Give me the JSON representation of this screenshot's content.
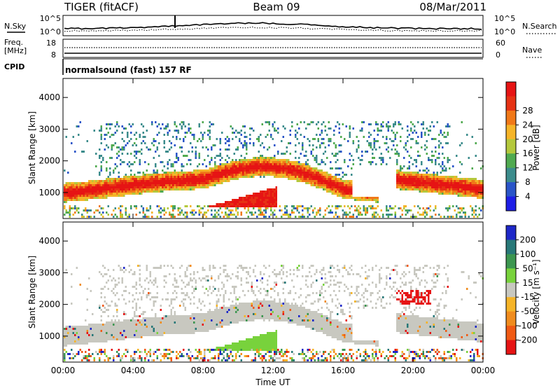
{
  "header": {
    "radar": "TIGER (fitACF)",
    "beam": "Beam 09",
    "date": "08/Mar/2011"
  },
  "noise_panel": {
    "left_label": "N.Sky",
    "left_ticks": [
      "10^5",
      "10^0"
    ],
    "right_label": "N.Search",
    "right_ticks": [
      "10^5",
      "10^0"
    ]
  },
  "freq_panel": {
    "left_label_line1": "Freq.",
    "left_label_line2": "[MHz]",
    "left_ticks": [
      "18",
      "8"
    ],
    "right_label": "Nave",
    "right_ticks": [
      "60",
      "0"
    ]
  },
  "cpid_panel": {
    "label": "CPID",
    "program": "normalsound (fast) 157 RF"
  },
  "chart_data": [
    {
      "type": "heatmap",
      "title": "",
      "xlabel": "",
      "ylabel": "Slant Range [km]",
      "xlim": [
        0,
        24
      ],
      "ylim": [
        180,
        4600
      ],
      "y_ticks": [
        "1000",
        "2000",
        "3000",
        "4000"
      ],
      "colorbar": {
        "label": "Power [dB]",
        "ticks": [
          "4",
          "8",
          "12",
          "16",
          "20",
          "24",
          "28"
        ],
        "colors": [
          "#1e1ee6",
          "#2a55c8",
          "#3c8c8c",
          "#50aa50",
          "#b4c83c",
          "#f5b428",
          "#f07818",
          "#e63214",
          "#e61414"
        ]
      }
    },
    {
      "type": "heatmap",
      "title": "",
      "xlabel": "Time UT",
      "ylabel": "Slant Range [km]",
      "xlim": [
        0,
        24
      ],
      "ylim": [
        180,
        4600
      ],
      "x_ticks": [
        "00:00",
        "04:00",
        "08:00",
        "12:00",
        "16:00",
        "20:00",
        "00:00"
      ],
      "y_ticks": [
        "1000",
        "2000",
        "3000",
        "4000"
      ],
      "colorbar": {
        "label": "Velocity [m s⁻¹]",
        "ticks": [
          "200",
          "100",
          "50",
          "15",
          "-15",
          "-50",
          "-100",
          "-200"
        ],
        "colors": [
          "#1e28c8",
          "#287878",
          "#3c9650",
          "#78d23c",
          "#c8c8c0",
          "#f5b428",
          "#f08c1e",
          "#f05a14",
          "#e61414"
        ]
      }
    }
  ]
}
